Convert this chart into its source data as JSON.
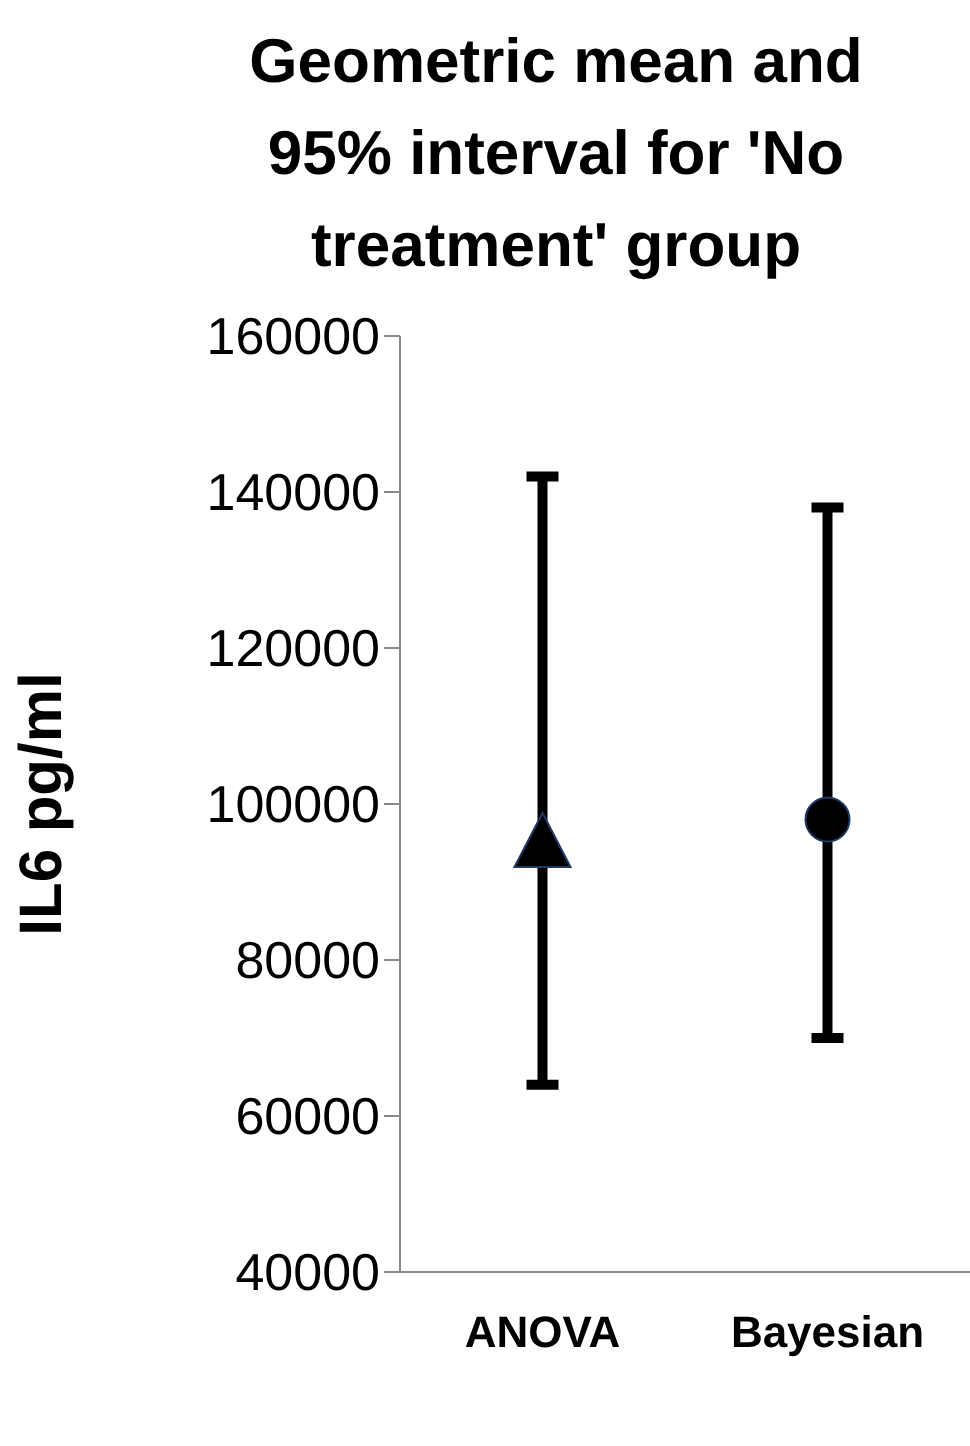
{
  "chart_data": {
    "type": "scatter",
    "title": "Geometric mean and 95% interval for 'No treatment' group",
    "ylabel": "IL6 pg/ml",
    "categories": [
      "ANOVA",
      "Bayesian"
    ],
    "series": [
      {
        "color": "#000000",
        "marker": "triangle",
        "values": [
          95000,
          null
        ],
        "errors": [
          [
            64000,
            142000
          ],
          null
        ]
      },
      {
        "color": "#000000",
        "marker": "circle",
        "values": [
          null,
          98000
        ],
        "errors": [
          null,
          [
            70000,
            138000
          ]
        ]
      }
    ],
    "ylim": [
      40000,
      160000
    ],
    "yticks": [
      40000,
      60000,
      80000,
      100000,
      120000,
      140000,
      160000
    ],
    "grid": false,
    "legend": false
  }
}
